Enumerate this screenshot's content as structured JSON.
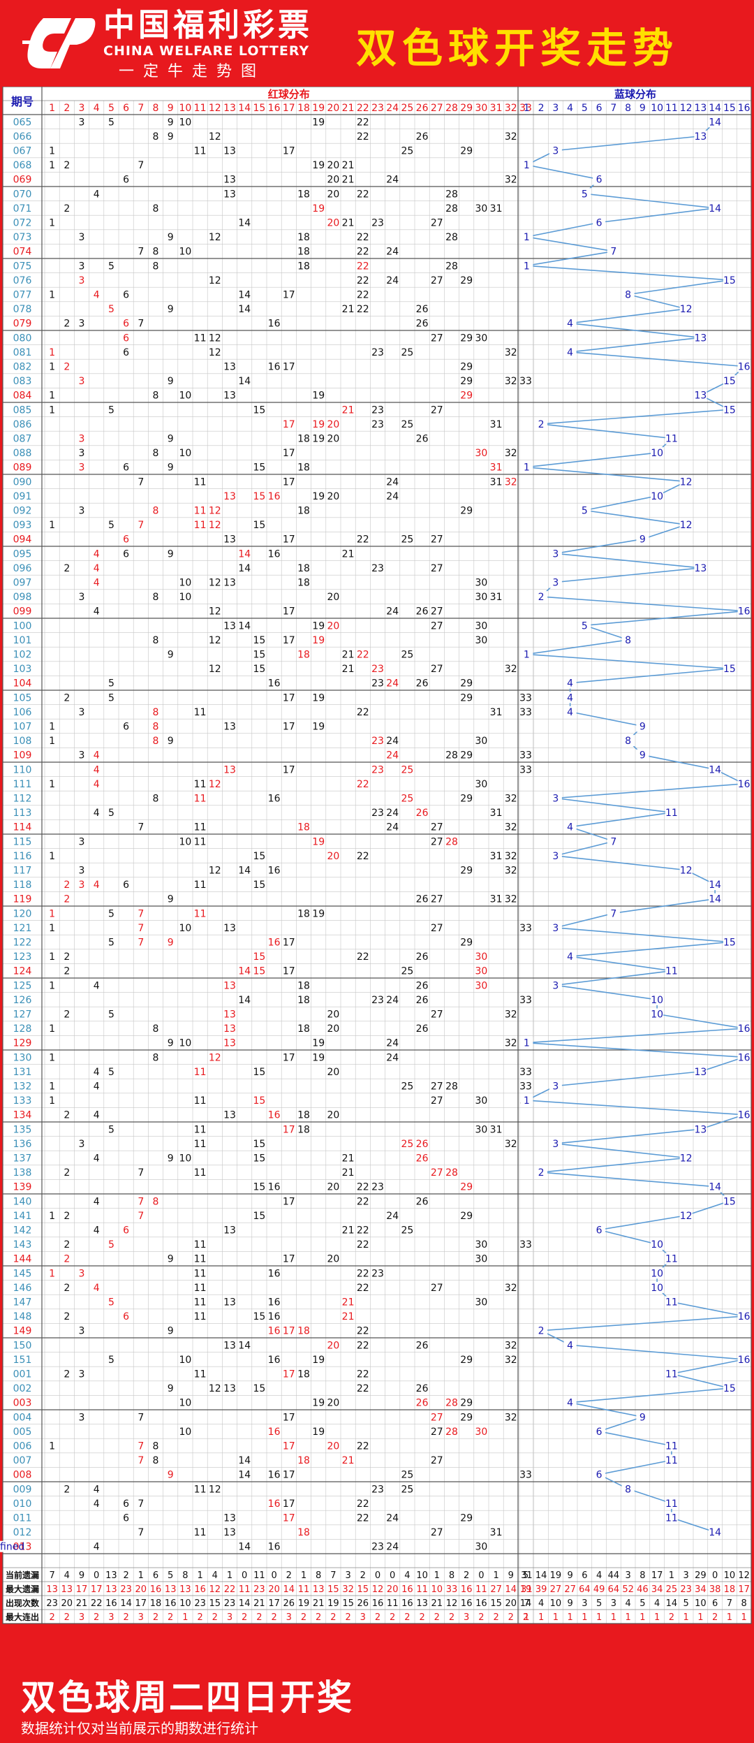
{
  "header": {
    "logo_cn": "中国福利彩票",
    "logo_en": "CHINA WELFARE LOTTERY",
    "logo_sub": "一定牛走势图",
    "title": "双色球开奖走势"
  },
  "footer": {
    "title": "双色球周二四日开奖",
    "note": "数据统计仅对当前展示的期数进行统计"
  },
  "colors": {
    "background": "#e8191e",
    "title": "#ffe000",
    "grid": "#c6c6c6",
    "red_number": "#e8191e",
    "blue_number": "#1a1ab0",
    "issue": "#3a8fb7",
    "line": "#5b9bd5"
  },
  "chart_data": {
    "type": "table",
    "columns": {
      "issue": "期号",
      "red": "红球分布",
      "blue": "蓝球分布"
    },
    "red_range": [
      1,
      33
    ],
    "blue_range": [
      1,
      16
    ],
    "issues": [
      "065",
      "066",
      "067",
      "068",
      "069",
      "070",
      "071",
      "072",
      "073",
      "074",
      "075",
      "076",
      "077",
      "078",
      "079",
      "080",
      "081",
      "082",
      "083",
      "084",
      "085",
      "086",
      "087",
      "088",
      "089",
      "090",
      "091",
      "092",
      "093",
      "094",
      "095",
      "096",
      "097",
      "098",
      "099",
      "100",
      "101",
      "102",
      "103",
      "104",
      "105",
      "106",
      "107",
      "108",
      "109",
      "110",
      "111",
      "112",
      "113",
      "114",
      "115",
      "116",
      "117",
      "118",
      "119",
      "120",
      "121",
      "122",
      "123",
      "124",
      "125",
      "126",
      "127",
      "128",
      "129",
      "130",
      "131",
      "132",
      "133",
      "134",
      "135",
      "136",
      "137",
      "138",
      "139",
      "140",
      "141",
      "142",
      "143",
      "144",
      "145",
      "146",
      "147",
      "148",
      "149",
      "150",
      "151",
      "001",
      "002",
      "003",
      "004",
      "005",
      "006",
      "007",
      "008",
      "009",
      "010",
      "011",
      "012",
      "013"
    ],
    "red": [
      [
        3,
        5,
        9,
        10,
        19,
        22
      ],
      [
        8,
        9,
        12,
        22,
        26,
        32
      ],
      [
        1,
        11,
        13,
        17,
        25,
        29
      ],
      [
        1,
        2,
        7,
        19,
        20,
        21
      ],
      [
        6,
        13,
        20,
        21,
        24,
        32
      ],
      [
        4,
        13,
        18,
        20,
        22,
        28
      ],
      [
        2,
        8,
        19,
        28,
        30,
        31
      ],
      [
        1,
        14,
        20,
        21,
        23,
        27
      ],
      [
        3,
        9,
        12,
        18,
        22,
        28
      ],
      [
        7,
        8,
        10,
        18,
        22,
        24
      ],
      [
        3,
        5,
        8,
        18,
        22,
        28
      ],
      [
        3,
        12,
        22,
        24,
        27,
        29
      ],
      [
        1,
        4,
        6,
        14,
        17,
        22
      ],
      [
        5,
        9,
        14,
        21,
        22,
        26
      ],
      [
        2,
        3,
        6,
        7,
        16,
        26
      ],
      [
        6,
        11,
        12,
        27,
        29,
        30
      ],
      [
        1,
        6,
        12,
        23,
        25,
        32
      ],
      [
        1,
        2,
        13,
        16,
        17,
        29
      ],
      [
        3,
        9,
        14,
        29,
        32,
        33
      ],
      [
        1,
        8,
        10,
        13,
        19,
        29
      ],
      [
        1,
        5,
        15,
        21,
        23,
        27
      ],
      [
        17,
        19,
        20,
        23,
        25,
        31
      ],
      [
        3,
        9,
        18,
        19,
        20,
        26
      ],
      [
        3,
        8,
        10,
        17,
        30,
        32
      ],
      [
        3,
        6,
        9,
        15,
        18,
        31
      ],
      [
        7,
        11,
        17,
        24,
        31,
        32
      ],
      [
        13,
        15,
        16,
        19,
        20,
        24
      ],
      [
        3,
        8,
        11,
        12,
        18,
        29
      ],
      [
        1,
        5,
        7,
        11,
        12,
        15
      ],
      [
        6,
        13,
        17,
        22,
        25,
        27
      ],
      [
        4,
        6,
        9,
        14,
        16,
        21
      ],
      [
        2,
        4,
        14,
        18,
        23,
        27
      ],
      [
        4,
        10,
        12,
        13,
        18,
        30
      ],
      [
        3,
        8,
        10,
        20,
        30,
        31
      ],
      [
        4,
        12,
        17,
        24,
        26,
        27
      ],
      [
        13,
        14,
        19,
        20,
        27,
        30
      ],
      [
        8,
        12,
        15,
        17,
        19,
        30
      ],
      [
        9,
        15,
        18,
        21,
        22,
        25
      ],
      [
        12,
        15,
        21,
        23,
        27,
        32
      ],
      [
        5,
        16,
        23,
        24,
        26,
        29
      ],
      [
        2,
        5,
        17,
        19,
        29,
        33
      ],
      [
        3,
        8,
        11,
        22,
        31,
        33
      ],
      [
        1,
        6,
        8,
        13,
        17,
        19
      ],
      [
        1,
        8,
        9,
        23,
        24,
        30
      ],
      [
        3,
        4,
        24,
        28,
        29,
        33
      ],
      [
        4,
        13,
        17,
        23,
        25,
        33
      ],
      [
        1,
        4,
        11,
        12,
        22,
        30
      ],
      [
        8,
        11,
        16,
        25,
        29,
        32
      ],
      [
        4,
        5,
        23,
        24,
        26,
        31
      ],
      [
        7,
        11,
        18,
        24,
        27,
        32
      ],
      [
        3,
        10,
        11,
        19,
        27,
        28
      ],
      [
        1,
        15,
        20,
        22,
        31,
        32
      ],
      [
        3,
        12,
        14,
        16,
        29,
        32
      ],
      [
        2,
        3,
        4,
        6,
        11,
        15
      ],
      [
        2,
        9,
        26,
        27,
        31,
        32
      ],
      [
        1,
        5,
        7,
        11,
        18,
        19
      ],
      [
        1,
        7,
        10,
        13,
        27,
        33
      ],
      [
        5,
        7,
        9,
        16,
        17,
        29
      ],
      [
        1,
        2,
        15,
        22,
        26,
        30
      ],
      [
        2,
        14,
        15,
        17,
        25,
        30
      ],
      [
        1,
        4,
        13,
        18,
        26,
        30
      ],
      [
        14,
        18,
        23,
        24,
        26,
        33
      ],
      [
        2,
        5,
        13,
        20,
        27,
        32
      ],
      [
        1,
        8,
        13,
        18,
        20,
        26
      ],
      [
        9,
        10,
        13,
        19,
        24,
        32
      ],
      [
        1,
        8,
        12,
        17,
        19,
        24
      ],
      [
        4,
        5,
        11,
        15,
        20,
        33
      ],
      [
        1,
        4,
        25,
        27,
        28,
        33
      ],
      [
        1,
        11,
        15,
        27,
        30,
        33
      ],
      [
        2,
        4,
        13,
        16,
        18,
        20
      ],
      [
        5,
        11,
        17,
        18,
        30,
        31
      ],
      [
        3,
        11,
        15,
        25,
        26,
        32
      ],
      [
        4,
        9,
        10,
        15,
        21,
        26
      ],
      [
        2,
        7,
        11,
        21,
        27,
        28
      ],
      [
        15,
        16,
        20,
        22,
        23,
        29
      ],
      [
        4,
        7,
        8,
        17,
        22,
        26
      ],
      [
        1,
        2,
        7,
        15,
        24,
        29
      ],
      [
        4,
        6,
        13,
        21,
        22,
        25
      ],
      [
        2,
        5,
        11,
        22,
        30,
        33
      ],
      [
        2,
        9,
        11,
        17,
        20,
        30
      ],
      [
        1,
        3,
        11,
        16,
        22,
        23
      ],
      [
        2,
        4,
        11,
        22,
        27,
        32
      ],
      [
        5,
        11,
        13,
        16,
        21,
        30
      ],
      [
        2,
        6,
        11,
        15,
        16,
        21
      ],
      [
        3,
        9,
        16,
        17,
        18,
        22
      ],
      [
        13,
        14,
        20,
        22,
        26,
        32
      ],
      [
        5,
        10,
        16,
        19,
        29,
        32
      ],
      [
        2,
        3,
        11,
        17,
        18,
        22
      ],
      [
        9,
        12,
        13,
        15,
        22,
        26
      ],
      [
        10,
        19,
        20,
        26,
        28,
        29
      ],
      [
        3,
        7,
        17,
        27,
        29,
        32
      ],
      [
        10,
        16,
        19,
        27,
        28,
        30
      ],
      [
        1,
        7,
        8,
        17,
        20,
        22
      ],
      [
        7,
        8,
        14,
        18,
        21,
        27
      ],
      [
        9,
        14,
        16,
        17,
        25,
        33
      ],
      [
        2,
        4,
        11,
        12,
        23,
        25
      ],
      [
        4,
        6,
        7,
        16,
        17,
        22
      ],
      [
        6,
        13,
        17,
        22,
        24,
        29
      ],
      [
        7,
        11,
        13,
        18,
        27,
        31
      ],
      [
        4,
        14,
        16,
        23,
        24,
        30
      ]
    ],
    "blue": [
      14,
      13,
      3,
      1,
      6,
      5,
      14,
      6,
      1,
      7,
      1,
      15,
      8,
      12,
      4,
      13,
      4,
      16,
      15,
      13,
      15,
      2,
      11,
      10,
      1,
      12,
      10,
      5,
      12,
      9,
      3,
      13,
      3,
      2,
      16,
      5,
      8,
      1,
      15,
      4,
      4,
      4,
      9,
      8,
      9,
      14,
      16,
      3,
      11,
      4,
      7,
      3,
      12,
      14,
      14,
      7,
      3,
      15,
      4,
      11,
      3,
      10,
      10,
      16,
      1,
      16,
      13,
      3,
      1,
      16,
      13,
      3,
      12,
      2,
      14,
      15,
      12,
      6,
      10,
      11,
      10,
      10,
      11,
      16,
      2,
      4,
      16,
      11,
      15,
      4,
      9,
      6,
      11,
      11,
      6,
      8,
      11,
      11,
      14
    ],
    "red_highlight": [
      [],
      [],
      [],
      [],
      [],
      [],
      [
        19
      ],
      [
        20
      ],
      [],
      [],
      [
        22
      ],
      [
        3
      ],
      [
        4
      ],
      [
        5
      ],
      [
        6
      ],
      [
        6
      ],
      [
        1
      ],
      [
        2
      ],
      [
        3
      ],
      [
        29
      ],
      [
        21
      ],
      [
        17,
        19,
        20
      ],
      [
        3
      ],
      [
        30
      ],
      [
        3,
        31
      ],
      [
        32
      ],
      [
        13,
        15,
        16
      ],
      [
        8,
        11,
        12
      ],
      [
        7,
        11,
        12
      ],
      [
        6
      ],
      [
        4,
        14
      ],
      [
        4
      ],
      [
        4
      ],
      [],
      [],
      [
        20
      ],
      [
        19
      ],
      [
        18,
        22
      ],
      [
        23
      ],
      [
        24
      ],
      [],
      [
        8
      ],
      [
        8
      ],
      [
        8,
        23
      ],
      [
        4,
        24
      ],
      [
        4,
        13,
        23,
        25
      ],
      [
        4,
        12,
        22
      ],
      [
        11,
        25
      ],
      [
        26
      ],
      [
        18
      ],
      [
        19,
        28
      ],
      [
        20
      ],
      [],
      [
        2,
        3,
        4
      ],
      [
        2
      ],
      [
        1,
        7,
        11
      ],
      [
        7
      ],
      [
        7,
        9,
        16
      ],
      [
        15,
        30
      ],
      [
        14,
        15,
        30
      ],
      [
        13,
        30
      ],
      [],
      [
        13
      ],
      [
        13
      ],
      [
        13
      ],
      [
        12
      ],
      [
        11
      ],
      [],
      [
        15
      ],
      [
        16
      ],
      [
        17
      ],
      [
        25,
        26
      ],
      [
        26,
        27
      ],
      [
        27,
        28
      ],
      [
        29
      ],
      [
        7,
        8
      ],
      [
        7
      ],
      [
        6
      ],
      [
        5
      ],
      [
        2
      ],
      [
        1,
        3
      ],
      [
        4
      ],
      [
        5,
        21
      ],
      [
        6,
        21
      ],
      [
        16,
        17,
        18
      ],
      [
        20
      ],
      [],
      [
        17
      ],
      [],
      [
        26,
        28
      ],
      [
        27
      ],
      [
        16,
        28,
        30
      ],
      [
        7,
        17,
        20
      ],
      [
        7,
        18,
        21
      ],
      [
        9
      ],
      [],
      [
        16
      ],
      [
        17
      ],
      [
        18
      ],
      []
    ],
    "stats": [
      {
        "label": "当前遗漏",
        "red": [
          7,
          4,
          9,
          0,
          13,
          2,
          1,
          6,
          5,
          8,
          1,
          4,
          1,
          0,
          11,
          0,
          2,
          1,
          8,
          7,
          3,
          2,
          0,
          0,
          4,
          10,
          1,
          8,
          2,
          0,
          1,
          9,
          5
        ],
        "blue": [
          31,
          14,
          19,
          9,
          6,
          4,
          44,
          3,
          8,
          17,
          1,
          3,
          29,
          0,
          10,
          12
        ]
      },
      {
        "label": "最大遗漏",
        "red": [
          13,
          13,
          17,
          17,
          13,
          23,
          20,
          16,
          13,
          13,
          16,
          12,
          22,
          11,
          23,
          20,
          14,
          11,
          13,
          15,
          32,
          15,
          12,
          20,
          16,
          11,
          10,
          33,
          16,
          11,
          27,
          14,
          19
        ],
        "blue": [
          31,
          39,
          27,
          27,
          64,
          49,
          64,
          52,
          46,
          34,
          25,
          23,
          34,
          38,
          18,
          17
        ]
      },
      {
        "label": "出现次数",
        "red": [
          23,
          20,
          21,
          22,
          16,
          14,
          17,
          18,
          16,
          10,
          23,
          15,
          23,
          14,
          21,
          17,
          26,
          19,
          21,
          19,
          15,
          26,
          16,
          11,
          16,
          13,
          21,
          12,
          16,
          16,
          15,
          20,
          14
        ],
        "blue": [
          7,
          4,
          10,
          9,
          3,
          5,
          3,
          4,
          5,
          4,
          14,
          5,
          10,
          6,
          7,
          8
        ]
      },
      {
        "label": "最大连出",
        "red": [
          2,
          2,
          3,
          2,
          3,
          2,
          3,
          2,
          2,
          1,
          2,
          2,
          3,
          2,
          2,
          2,
          3,
          2,
          2,
          2,
          2,
          3,
          2,
          2,
          2,
          2,
          2,
          2,
          3,
          2,
          2,
          2,
          2
        ],
        "blue": [
          1,
          1,
          1,
          1,
          1,
          1,
          1,
          1,
          1,
          1,
          2,
          1,
          1,
          2,
          1,
          1
        ]
      }
    ]
  }
}
